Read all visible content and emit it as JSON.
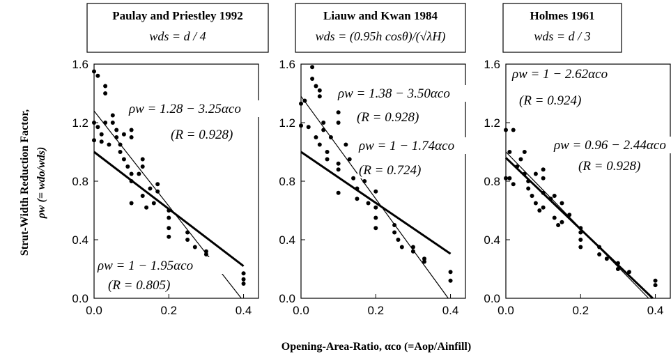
{
  "xlabel": "Opening-Area-Ratio, αco (=Aop/Ainfill)",
  "ylabel": [
    "Strut-Width Reduction Factor,",
    "ρw (= wdo/wds)"
  ],
  "chart_data": [
    {
      "type": "scatter",
      "title": "Paulay and Priestley 1992",
      "subtitle": "wds = d / 4",
      "xlim": [
        0,
        0.44
      ],
      "ylim": [
        0,
        1.6
      ],
      "xticks": [
        {
          "value": 0,
          "label": "0.0"
        },
        0.2,
        0.4
      ],
      "yticks": [
        {
          "value": 0,
          "label": "0.0"
        },
        0.4,
        0.8,
        1.2,
        1.6
      ],
      "color": "#000000",
      "points": {
        "x": [
          0,
          0.01,
          0.03,
          0.03,
          0,
          0.01,
          0.02,
          0.03,
          0,
          0.02,
          0.04,
          0.05,
          0.05,
          0.06,
          0.06,
          0.07,
          0.07,
          0.08,
          0.08,
          0.09,
          0.1,
          0.1,
          0.1,
          0.1,
          0.1,
          0.12,
          0.13,
          0.13,
          0.13,
          0.14,
          0.15,
          0.16,
          0.17,
          0.17,
          0.2,
          0.2,
          0.2,
          0.2,
          0.25,
          0.25,
          0.27,
          0.3,
          0.3,
          0.33,
          0.33,
          0.4,
          0.4,
          0.4
        ],
        "values": [
          1.55,
          1.52,
          1.45,
          1.4,
          1.2,
          1.17,
          1.12,
          1.2,
          1.08,
          1.07,
          1.05,
          1.25,
          1.2,
          1.15,
          1.1,
          1.05,
          1.0,
          1.12,
          0.95,
          0.9,
          1.15,
          1.1,
          0.85,
          0.8,
          0.65,
          0.85,
          0.95,
          0.9,
          0.7,
          0.62,
          0.75,
          0.65,
          0.78,
          0.73,
          0.6,
          0.55,
          0.48,
          0.42,
          0.45,
          0.4,
          0.35,
          0.3,
          0.32,
          0.25,
          0.23,
          0.17,
          0.13,
          0.1
        ]
      },
      "lines": [
        {
          "x": [
            0,
            0.394
          ],
          "values": [
            1.28,
            0
          ],
          "width": 1.2
        },
        {
          "x": [
            0,
            0.4
          ],
          "values": [
            1,
            0.22
          ],
          "width": 3
        }
      ],
      "annotations": [
        "ρw = 1.28 − 3.25αco",
        "(R = 0.928)",
        "ρw = 1 − 1.95αco",
        "(R = 0.805)"
      ]
    },
    {
      "type": "scatter",
      "title": "Liauw and Kwan 1984",
      "subtitle": "wds = (0.95h cosθ)/(√λH)",
      "xlim": [
        0,
        0.44
      ],
      "ylim": [
        0,
        1.6
      ],
      "xticks": [
        {
          "value": 0,
          "label": "0.0"
        },
        0.2,
        0.4
      ],
      "yticks": [
        {
          "value": 0,
          "label": "0.0"
        },
        0.4,
        0.8,
        1.2,
        1.6
      ],
      "color": "#000000",
      "points": {
        "x": [
          0,
          0.01,
          0.03,
          0.03,
          0.04,
          0.05,
          0.05,
          0,
          0.02,
          0.04,
          0.05,
          0.06,
          0.06,
          0.07,
          0.07,
          0.08,
          0.1,
          0.1,
          0.1,
          0.1,
          0.1,
          0.12,
          0.13,
          0.14,
          0.15,
          0.15,
          0.16,
          0.17,
          0.18,
          0.2,
          0.2,
          0.2,
          0.2,
          0.25,
          0.25,
          0.26,
          0.27,
          0.3,
          0.3,
          0.33,
          0.33,
          0.4,
          0.4
        ],
        "values": [
          1.33,
          1.35,
          1.58,
          1.5,
          1.45,
          1.42,
          1.38,
          1.18,
          1.17,
          1.1,
          1.05,
          1.2,
          1.15,
          1.0,
          0.95,
          1.1,
          1.27,
          1.2,
          0.92,
          0.88,
          0.72,
          1.05,
          0.95,
          0.82,
          0.75,
          0.68,
          1.0,
          0.8,
          0.65,
          0.73,
          0.62,
          0.55,
          0.48,
          0.5,
          0.45,
          0.4,
          0.35,
          0.32,
          0.35,
          0.27,
          0.25,
          0.18,
          0.12
        ]
      },
      "lines": [
        {
          "x": [
            0,
            0.394
          ],
          "values": [
            1.38,
            0
          ],
          "width": 1.2
        },
        {
          "x": [
            0,
            0.4
          ],
          "values": [
            1,
            0.304
          ],
          "width": 3
        }
      ],
      "annotations": [
        "ρw = 1.38 − 3.50αco",
        "(R = 0.928)",
        "ρw = 1 − 1.74αco",
        "(R = 0.724)"
      ]
    },
    {
      "type": "scatter",
      "title": "Holmes 1961",
      "subtitle": "wds = d / 3",
      "xlim": [
        0,
        0.44
      ],
      "ylim": [
        0,
        1.6
      ],
      "xticks": [
        {
          "value": 0,
          "label": "0.0"
        },
        0.2,
        0.4
      ],
      "yticks": [
        {
          "value": 0,
          "label": "0.0"
        },
        0.4,
        0.8,
        1.2,
        1.6
      ],
      "color": "#000000",
      "points": {
        "x": [
          0,
          0.02,
          0.01,
          0,
          0.01,
          0.02,
          0.03,
          0.04,
          0.05,
          0.05,
          0.06,
          0.06,
          0.07,
          0.08,
          0.08,
          0.09,
          0.1,
          0.1,
          0.1,
          0.1,
          0.12,
          0.13,
          0.13,
          0.14,
          0.15,
          0.15,
          0.17,
          0.2,
          0.2,
          0.2,
          0.2,
          0.25,
          0.25,
          0.27,
          0.3,
          0.3,
          0.33,
          0.4,
          0.4
        ],
        "values": [
          1.15,
          1.15,
          1.0,
          0.82,
          0.82,
          0.78,
          0.9,
          0.95,
          1.0,
          0.85,
          0.8,
          0.75,
          0.7,
          0.85,
          0.65,
          0.6,
          0.88,
          0.82,
          0.72,
          0.62,
          0.68,
          0.7,
          0.55,
          0.5,
          0.65,
          0.52,
          0.57,
          0.48,
          0.45,
          0.4,
          0.35,
          0.35,
          0.3,
          0.27,
          0.24,
          0.2,
          0.18,
          0.12,
          0.09
        ]
      },
      "lines": [
        {
          "x": [
            0,
            0.382
          ],
          "values": [
            1,
            0
          ],
          "width": 1.2
        },
        {
          "x": [
            0,
            0.393
          ],
          "values": [
            0.96,
            0
          ],
          "width": 3
        }
      ],
      "annotations": [
        "ρw = 1 − 2.62αco",
        "(R = 0.924)",
        "ρw = 0.96 − 2.44αco",
        "(R = 0.928)"
      ]
    }
  ]
}
